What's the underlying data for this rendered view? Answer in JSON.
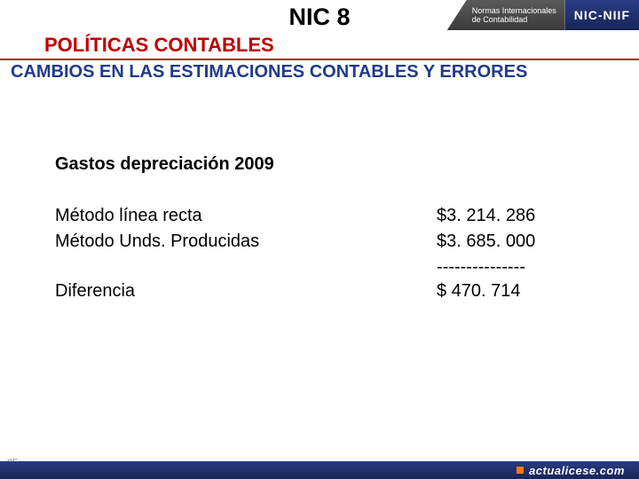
{
  "banner": {
    "line1": "Normas Internacionales",
    "line2": "de Contabilidad",
    "badge": "NIC-NIIF"
  },
  "title": "NIC 8",
  "subtitle": "POLÍTICAS CONTABLES",
  "subheading": "CAMBIOS EN LAS ESTIMACIONES CONTABLES Y ERRORES",
  "section_heading": "Gastos depreciación 2009",
  "rows": [
    {
      "label": "Método línea recta",
      "value": "$3. 214. 286"
    },
    {
      "label": "Método Unds. Producidas",
      "value": "$3. 685. 000"
    }
  ],
  "separator": "---------------",
  "result": {
    "label": "Diferencia",
    "value": "$  470. 714"
  },
  "slide_number": "85",
  "footer": "actualicese.com",
  "colors": {
    "subtitle": "#c00000",
    "subheading": "#1f3b8a",
    "footer_bg": "#1e2f6f",
    "banner_bg": "#4a4a4a"
  }
}
